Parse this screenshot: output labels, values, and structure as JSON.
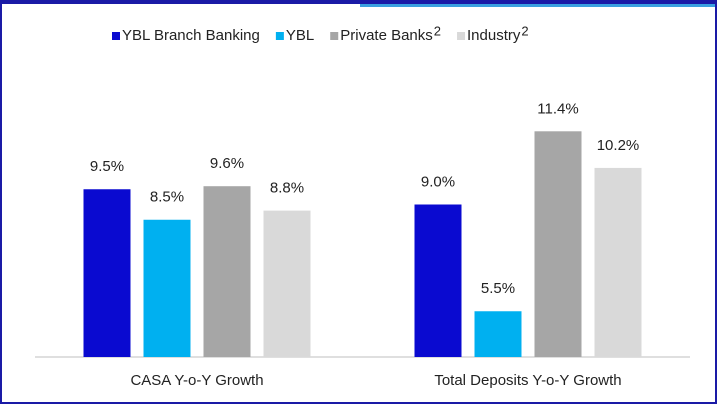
{
  "chart_data": {
    "type": "bar",
    "categories": [
      "CASA Y-o-Y Growth",
      "Total Deposits Y-o-Y Growth"
    ],
    "series": [
      {
        "name": "YBL Branch Banking",
        "color": "#0a0ad0",
        "values": [
          9.5,
          9.0
        ],
        "value_labels": [
          "9.5%",
          "9.0%"
        ]
      },
      {
        "name": "YBL",
        "color": "#00b0f0",
        "values": [
          8.5,
          5.5
        ],
        "value_labels": [
          "8.5%",
          "5.5%"
        ]
      },
      {
        "name": "Private Banks",
        "note": "2",
        "color": "#a6a6a6",
        "values": [
          9.6,
          11.4
        ],
        "value_labels": [
          "9.6%",
          "11.4%"
        ]
      },
      {
        "name": "Industry",
        "note": "2",
        "color": "#d9d9d9",
        "values": [
          8.8,
          10.2
        ],
        "value_labels": [
          "8.8%",
          "10.2%"
        ]
      }
    ],
    "ylim": [
      4,
      15
    ],
    "legend": "top"
  }
}
